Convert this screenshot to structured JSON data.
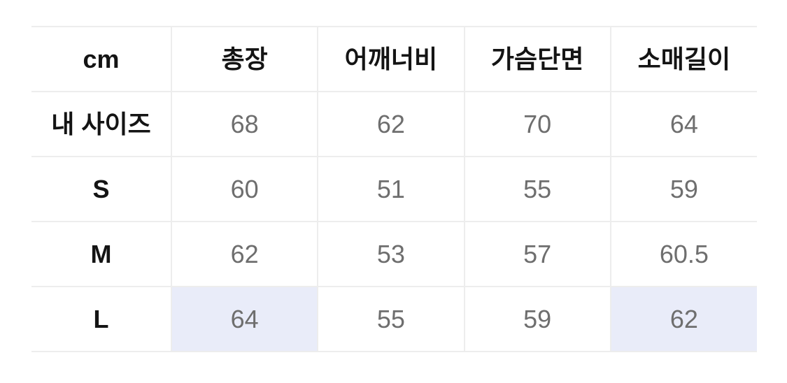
{
  "size_chart": {
    "unit_header": "cm",
    "columns": [
      "총장",
      "어깨너비",
      "가슴단면",
      "소매길이"
    ],
    "rows": [
      {
        "label": "내 사이즈",
        "values": [
          "68",
          "62",
          "70",
          "64"
        ]
      },
      {
        "label": "S",
        "values": [
          "60",
          "51",
          "55",
          "59"
        ]
      },
      {
        "label": "M",
        "values": [
          "62",
          "53",
          "57",
          "60.5"
        ]
      },
      {
        "label": "L",
        "values": [
          "64",
          "55",
          "59",
          "62"
        ]
      }
    ],
    "highlighted_cells": [
      {
        "row": "L",
        "column": "총장",
        "value": "64"
      },
      {
        "row": "L",
        "column": "소매길이",
        "value": "62"
      }
    ],
    "colors": {
      "highlight_background": "#e9ecf9",
      "border": "#ededed",
      "label_text": "#141414",
      "value_text": "#6e6e6e",
      "page_background": "#ffffff"
    }
  }
}
